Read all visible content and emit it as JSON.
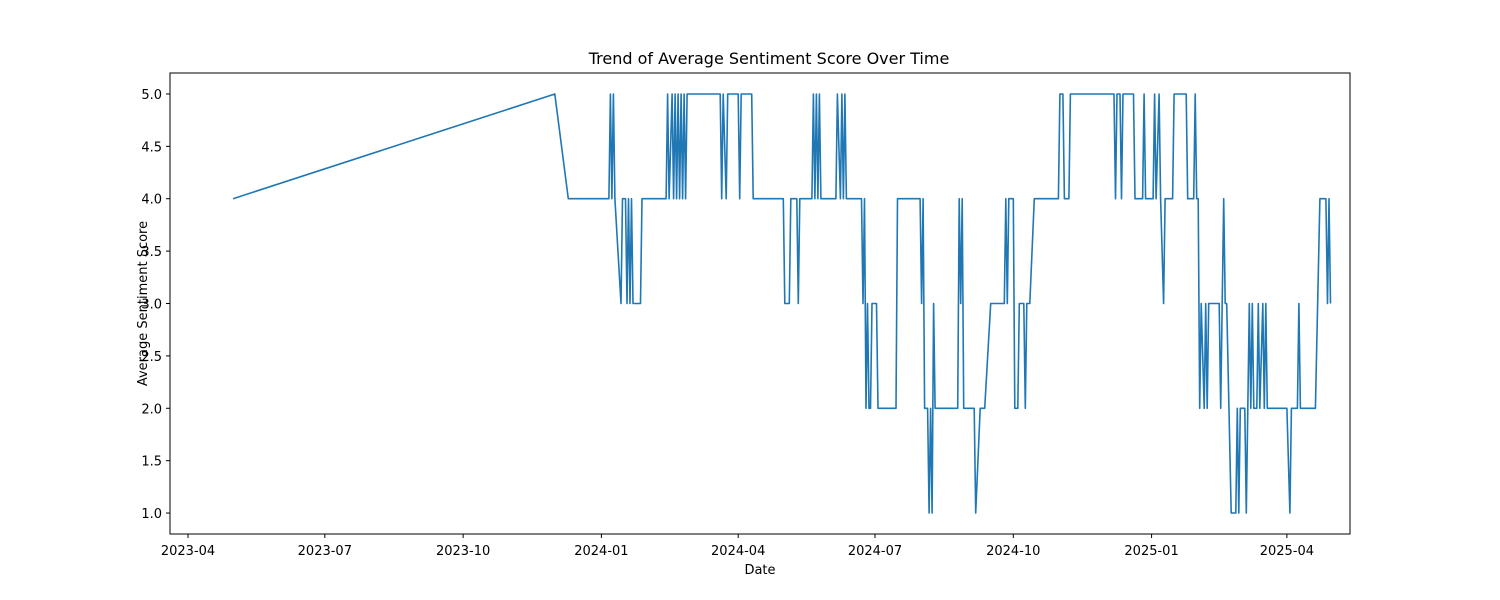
{
  "chart_data": {
    "type": "line",
    "title": "Trend of Average Sentiment Score Over Time",
    "xlabel": "Date",
    "ylabel": "Average Sentiment Score",
    "x_is_date": true,
    "xlim": [
      "2023-03-20",
      "2025-05-13"
    ],
    "ylim": [
      0.8,
      5.2
    ],
    "x_ticks": [
      "2023-04",
      "2023-07",
      "2023-10",
      "2024-01",
      "2024-04",
      "2024-07",
      "2024-10",
      "2025-01",
      "2025-04"
    ],
    "y_ticks": [
      "1.0",
      "1.5",
      "2.0",
      "2.5",
      "3.0",
      "3.5",
      "4.0",
      "4.5",
      "5.0"
    ],
    "grid": false,
    "line_color": "#1f77b4",
    "series": [
      {
        "name": "",
        "points": [
          [
            "2023-05-01",
            4
          ],
          [
            "2023-12-01",
            5
          ],
          [
            "2023-12-10",
            4
          ],
          [
            "2024-01-06",
            4
          ],
          [
            "2024-01-07",
            5
          ],
          [
            "2024-01-08",
            4
          ],
          [
            "2024-01-09",
            5
          ],
          [
            "2024-01-10",
            4
          ],
          [
            "2024-01-14",
            3
          ],
          [
            "2024-01-15",
            4
          ],
          [
            "2024-01-17",
            4
          ],
          [
            "2024-01-18",
            3
          ],
          [
            "2024-01-19",
            4
          ],
          [
            "2024-01-20",
            3
          ],
          [
            "2024-01-21",
            4
          ],
          [
            "2024-01-22",
            3
          ],
          [
            "2024-01-27",
            3
          ],
          [
            "2024-01-28",
            4
          ],
          [
            "2024-02-13",
            4
          ],
          [
            "2024-02-14",
            5
          ],
          [
            "2024-02-15",
            4
          ],
          [
            "2024-02-17",
            5
          ],
          [
            "2024-02-18",
            4
          ],
          [
            "2024-02-19",
            5
          ],
          [
            "2024-02-20",
            4
          ],
          [
            "2024-02-21",
            5
          ],
          [
            "2024-02-22",
            4
          ],
          [
            "2024-02-23",
            5
          ],
          [
            "2024-02-24",
            4
          ],
          [
            "2024-02-25",
            5
          ],
          [
            "2024-02-26",
            4
          ],
          [
            "2024-02-27",
            5
          ],
          [
            "2024-03-20",
            5
          ],
          [
            "2024-03-21",
            4
          ],
          [
            "2024-03-22",
            5
          ],
          [
            "2024-03-24",
            4
          ],
          [
            "2024-03-25",
            5
          ],
          [
            "2024-04-01",
            5
          ],
          [
            "2024-04-02",
            4
          ],
          [
            "2024-04-03",
            5
          ],
          [
            "2024-04-10",
            5
          ],
          [
            "2024-04-11",
            4
          ],
          [
            "2024-05-01",
            4
          ],
          [
            "2024-05-02",
            3
          ],
          [
            "2024-05-05",
            3
          ],
          [
            "2024-05-06",
            4
          ],
          [
            "2024-05-10",
            4
          ],
          [
            "2024-05-11",
            3
          ],
          [
            "2024-05-12",
            4
          ],
          [
            "2024-05-20",
            4
          ],
          [
            "2024-05-21",
            5
          ],
          [
            "2024-05-22",
            4
          ],
          [
            "2024-05-23",
            5
          ],
          [
            "2024-05-24",
            4
          ],
          [
            "2024-05-25",
            5
          ],
          [
            "2024-05-26",
            4
          ],
          [
            "2024-06-05",
            4
          ],
          [
            "2024-06-06",
            5
          ],
          [
            "2024-06-08",
            4
          ],
          [
            "2024-06-09",
            5
          ],
          [
            "2024-06-10",
            4
          ],
          [
            "2024-06-11",
            5
          ],
          [
            "2024-06-12",
            4
          ],
          [
            "2024-06-22",
            4
          ],
          [
            "2024-06-23",
            3
          ],
          [
            "2024-06-24",
            4
          ],
          [
            "2024-06-25",
            2
          ],
          [
            "2024-06-26",
            3
          ],
          [
            "2024-06-27",
            2
          ],
          [
            "2024-06-28",
            2
          ],
          [
            "2024-06-29",
            3
          ],
          [
            "2024-07-02",
            3
          ],
          [
            "2024-07-03",
            2
          ],
          [
            "2024-07-15",
            2
          ],
          [
            "2024-07-16",
            4
          ],
          [
            "2024-07-31",
            4
          ],
          [
            "2024-08-01",
            3
          ],
          [
            "2024-08-02",
            4
          ],
          [
            "2024-08-03",
            2
          ],
          [
            "2024-08-05",
            2
          ],
          [
            "2024-08-06",
            1
          ],
          [
            "2024-08-07",
            2
          ],
          [
            "2024-08-08",
            1
          ],
          [
            "2024-08-09",
            3
          ],
          [
            "2024-08-10",
            2
          ],
          [
            "2024-08-25",
            2
          ],
          [
            "2024-08-26",
            4
          ],
          [
            "2024-08-27",
            3
          ],
          [
            "2024-08-28",
            4
          ],
          [
            "2024-08-29",
            2
          ],
          [
            "2024-09-05",
            2
          ],
          [
            "2024-09-06",
            1
          ],
          [
            "2024-09-09",
            2
          ],
          [
            "2024-09-12",
            2
          ],
          [
            "2024-09-16",
            3
          ],
          [
            "2024-09-25",
            3
          ],
          [
            "2024-09-26",
            4
          ],
          [
            "2024-09-27",
            3
          ],
          [
            "2024-09-28",
            4
          ],
          [
            "2024-10-01",
            4
          ],
          [
            "2024-10-02",
            2
          ],
          [
            "2024-10-04",
            2
          ],
          [
            "2024-10-05",
            3
          ],
          [
            "2024-10-08",
            3
          ],
          [
            "2024-10-09",
            2
          ],
          [
            "2024-10-10",
            3
          ],
          [
            "2024-10-12",
            3
          ],
          [
            "2024-10-15",
            4
          ],
          [
            "2024-10-31",
            4
          ],
          [
            "2024-11-01",
            5
          ],
          [
            "2024-11-03",
            5
          ],
          [
            "2024-11-04",
            4
          ],
          [
            "2024-11-07",
            4
          ],
          [
            "2024-11-08",
            5
          ],
          [
            "2024-12-07",
            5
          ],
          [
            "2024-12-08",
            4
          ],
          [
            "2024-12-09",
            5
          ],
          [
            "2024-12-11",
            5
          ],
          [
            "2024-12-12",
            4
          ],
          [
            "2024-12-13",
            5
          ],
          [
            "2024-12-20",
            5
          ],
          [
            "2024-12-21",
            4
          ],
          [
            "2024-12-26",
            4
          ],
          [
            "2024-12-27",
            5
          ],
          [
            "2024-12-28",
            4
          ],
          [
            "2025-01-02",
            4
          ],
          [
            "2025-01-03",
            5
          ],
          [
            "2025-01-04",
            4
          ],
          [
            "2025-01-06",
            5
          ],
          [
            "2025-01-07",
            4
          ],
          [
            "2025-01-09",
            3
          ],
          [
            "2025-01-10",
            4
          ],
          [
            "2025-01-15",
            4
          ],
          [
            "2025-01-16",
            5
          ],
          [
            "2025-01-24",
            5
          ],
          [
            "2025-01-25",
            4
          ],
          [
            "2025-01-29",
            4
          ],
          [
            "2025-01-30",
            5
          ],
          [
            "2025-01-31",
            4
          ],
          [
            "2025-02-01",
            4
          ],
          [
            "2025-02-02",
            2
          ],
          [
            "2025-02-03",
            3
          ],
          [
            "2025-02-05",
            2
          ],
          [
            "2025-02-06",
            3
          ],
          [
            "2025-02-07",
            2
          ],
          [
            "2025-02-08",
            3
          ],
          [
            "2025-02-15",
            3
          ],
          [
            "2025-02-16",
            2
          ],
          [
            "2025-02-17",
            3
          ],
          [
            "2025-02-18",
            4
          ],
          [
            "2025-02-19",
            3
          ],
          [
            "2025-02-20",
            3
          ],
          [
            "2025-02-23",
            1
          ],
          [
            "2025-02-26",
            1
          ],
          [
            "2025-02-27",
            2
          ],
          [
            "2025-02-28",
            1
          ],
          [
            "2025-03-01",
            2
          ],
          [
            "2025-03-04",
            2
          ],
          [
            "2025-03-05",
            1
          ],
          [
            "2025-03-06",
            2
          ],
          [
            "2025-03-07",
            3
          ],
          [
            "2025-03-08",
            2
          ],
          [
            "2025-03-09",
            3
          ],
          [
            "2025-03-10",
            2
          ],
          [
            "2025-03-12",
            2
          ],
          [
            "2025-03-13",
            3
          ],
          [
            "2025-03-14",
            2
          ],
          [
            "2025-03-16",
            3
          ],
          [
            "2025-03-17",
            2
          ],
          [
            "2025-03-18",
            3
          ],
          [
            "2025-03-19",
            2
          ],
          [
            "2025-04-01",
            2
          ],
          [
            "2025-04-03",
            1
          ],
          [
            "2025-04-04",
            2
          ],
          [
            "2025-04-08",
            2
          ],
          [
            "2025-04-09",
            3
          ],
          [
            "2025-04-10",
            2
          ],
          [
            "2025-04-20",
            2
          ],
          [
            "2025-04-23",
            4
          ],
          [
            "2025-04-27",
            4
          ],
          [
            "2025-04-28",
            3
          ],
          [
            "2025-04-29",
            4
          ],
          [
            "2025-04-30",
            3
          ]
        ]
      }
    ]
  }
}
